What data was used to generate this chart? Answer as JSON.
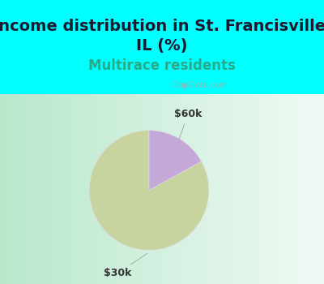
{
  "title": "Income distribution in St. Francisville,\nIL (%)",
  "subtitle": "Multirace residents",
  "title_color": "#1a1a2e",
  "subtitle_color": "#2aaa88",
  "background_color_top": "#00ffff",
  "slices": [
    {
      "label": "$30k",
      "value": 83,
      "color": "#c8d4a0"
    },
    {
      "label": "$60k",
      "value": 17,
      "color": "#c4a8d8"
    }
  ],
  "label_fontsize": 9,
  "title_fontsize": 14,
  "subtitle_fontsize": 12,
  "watermark": "City-Data.com",
  "startangle": 90,
  "gradient_left": "#b8e8cc",
  "gradient_right": "#e8f8f0"
}
